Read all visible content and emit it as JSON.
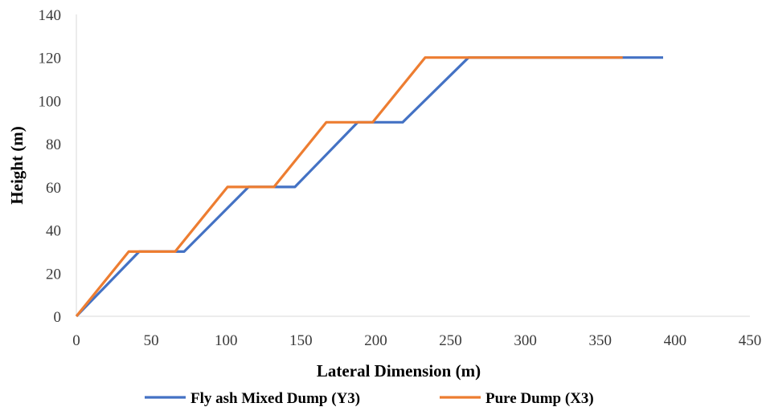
{
  "chart_data": {
    "type": "line",
    "xlabel": "Lateral Dimension (m)",
    "ylabel": "Height (m)",
    "xlim": [
      0,
      450
    ],
    "ylim": [
      0,
      140
    ],
    "xticks": [
      "0",
      "50",
      "100",
      "150",
      "200",
      "250",
      "300",
      "350",
      "400",
      "450"
    ],
    "yticks": [
      "0",
      "20",
      "40",
      "60",
      "80",
      "100",
      "120",
      "140"
    ],
    "grid": false,
    "legend_position": "bottom",
    "series": [
      {
        "name": "Fly ash Mixed Dump (Y3)",
        "color": "#4472C4",
        "x": [
          0,
          42,
          72,
          115,
          146,
          188,
          218,
          262,
          392
        ],
        "y": [
          0,
          30,
          30,
          60,
          60,
          90,
          90,
          120,
          120
        ]
      },
      {
        "name": "Pure Dump (X3)",
        "color": "#ED7D31",
        "x": [
          0,
          35,
          66,
          101,
          132,
          167,
          198,
          233,
          365
        ],
        "y": [
          0,
          30,
          30,
          60,
          60,
          90,
          90,
          120,
          120
        ]
      }
    ]
  }
}
